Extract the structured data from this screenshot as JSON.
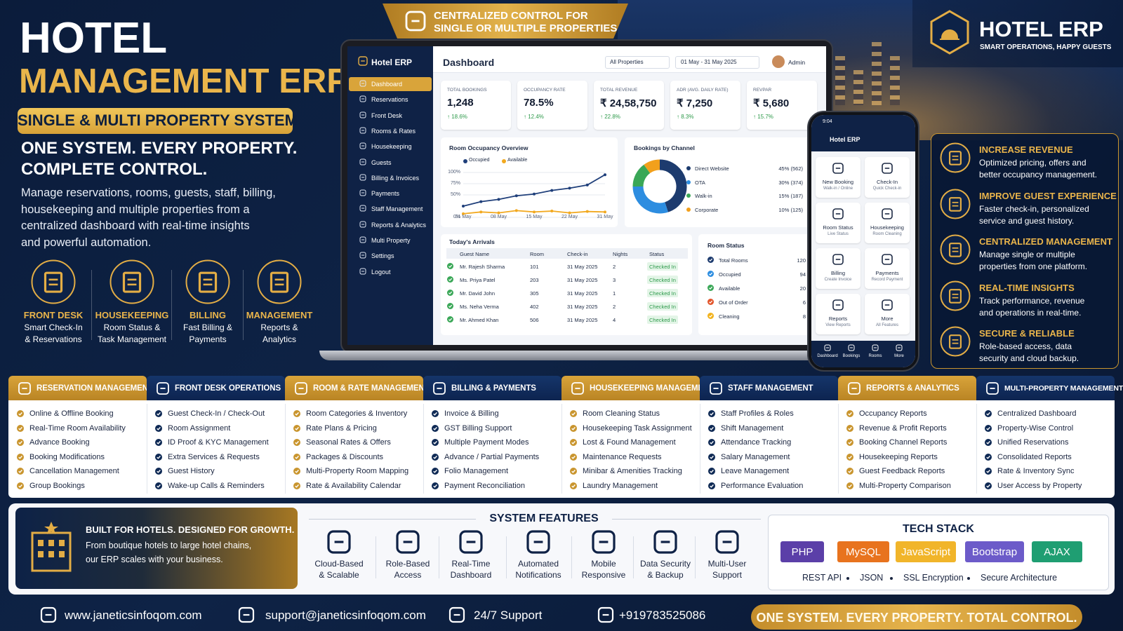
{
  "hero": {
    "title_line1": "HOTEL",
    "title_line2": "MANAGEMENT ERP",
    "badge": "SINGLE & MULTI PROPERTY SYSTEM",
    "tagline_lines": [
      "ONE SYSTEM. EVERY PROPERTY.",
      "COMPLETE CONTROL."
    ],
    "description_lines": [
      "Manage reservations, rooms, guests, staff, billing,",
      "housekeeping and multiple properties from a",
      "centralized dashboard with real-time insights",
      "and powerful automation."
    ],
    "modules": [
      {
        "title": "FRONT DESK",
        "lines": [
          "Smart Check-In",
          "& Reservations"
        ]
      },
      {
        "title": "HOUSEKEEPING",
        "lines": [
          "Room Status &",
          "Task Management"
        ]
      },
      {
        "title": "BILLING",
        "lines": [
          "Fast Billing &",
          "Payments"
        ]
      },
      {
        "title": "MANAGEMENT",
        "lines": [
          "Reports &",
          "Analytics"
        ]
      }
    ]
  },
  "top_banner": {
    "lines": [
      "CENTRALIZED CONTROL FOR",
      "SINGLE OR MULTIPLE PROPERTIES"
    ]
  },
  "brand": {
    "name": "HOTEL ERP",
    "tagline": "SMART OPERATIONS, HAPPY GUESTS"
  },
  "dashboard": {
    "app_name": "Hotel ERP",
    "menu": [
      "Dashboard",
      "Reservations",
      "Front Desk",
      "Rooms & Rates",
      "Housekeeping",
      "Guests",
      "Billing & Invoices",
      "Payments",
      "Staff Management",
      "Reports & Analytics",
      "Multi Property",
      "Settings",
      "Logout"
    ],
    "title": "Dashboard",
    "property_filter": "All Properties",
    "date_filter": "01 May - 31 May 2025",
    "user": "Admin",
    "kpis": [
      {
        "label": "TOTAL BOOKINGS",
        "value": "1,248",
        "change": "↑ 18.6%"
      },
      {
        "label": "OCCUPANCY RATE",
        "value": "78.5%",
        "change": "↑ 12.4%"
      },
      {
        "label": "TOTAL REVENUE",
        "value": "₹ 24,58,750",
        "change": "↑ 22.8%"
      },
      {
        "label": "ADR (AVG. DAILY RATE)",
        "value": "₹ 7,250",
        "change": "↑ 8.3%"
      },
      {
        "label": "REVPAR",
        "value": "₹ 5,680",
        "change": "↑ 15.7%"
      }
    ],
    "occupancy": {
      "title": "Room Occupancy Overview",
      "ylim": [
        0,
        100
      ],
      "yticks": [
        {
          "value": 100,
          "label": "100%"
        },
        {
          "value": 75,
          "label": "75%"
        },
        {
          "value": 50,
          "label": "50%"
        },
        {
          "value": 0,
          "label": "0%"
        }
      ],
      "x_labels": [
        "01 May",
        "08 May",
        "15 May",
        "22 May",
        "31 May"
      ],
      "series": [
        {
          "name": "Occupied",
          "color": "#1f3f7a",
          "values": [
            25,
            35,
            40,
            48,
            52,
            60,
            65,
            72,
            95
          ]
        },
        {
          "name": "Available",
          "color": "#f2a91f",
          "values": [
            8,
            12,
            10,
            15,
            12,
            14,
            10,
            13,
            12
          ]
        }
      ]
    },
    "channels": {
      "title": "Bookings by Channel",
      "items": [
        {
          "name": "Direct Website",
          "value": 45,
          "label": "45% (562)",
          "color": "#1d3b6e"
        },
        {
          "name": "OTA",
          "value": 30,
          "label": "30% (374)",
          "color": "#2d8de0"
        },
        {
          "name": "Walk-in",
          "value": 15,
          "label": "15% (187)",
          "color": "#3aa757"
        },
        {
          "name": "Corporate",
          "value": 10,
          "label": "10% (125)",
          "color": "#f2a01c"
        }
      ]
    },
    "arrivals": {
      "title": "Today's Arrivals",
      "columns": [
        "Guest Name",
        "Room",
        "Check-in",
        "Nights",
        "Status"
      ],
      "rows": [
        [
          "Mr. Rajesh Sharma",
          "101",
          "31 May 2025",
          "2",
          "Checked In"
        ],
        [
          "Ms. Priya Patel",
          "203",
          "31 May 2025",
          "3",
          "Checked In"
        ],
        [
          "Mr. David John",
          "305",
          "31 May 2025",
          "1",
          "Checked In"
        ],
        [
          "Ms. Neha Verma",
          "402",
          "31 May 2025",
          "2",
          "Checked In"
        ],
        [
          "Mr. Ahmed Khan",
          "506",
          "31 May 2025",
          "4",
          "Checked In"
        ]
      ]
    },
    "room_status": {
      "title": "Room Status",
      "rows": [
        {
          "label": "Total Rooms",
          "value": "120",
          "color": "#1d3b6e"
        },
        {
          "label": "Occupied",
          "value": "94",
          "color": "#2d8de0"
        },
        {
          "label": "Available",
          "value": "20",
          "color": "#3aa757"
        },
        {
          "label": "Out of Order",
          "value": "6",
          "color": "#e2552b"
        },
        {
          "label": "Cleaning",
          "value": "8",
          "color": "#f2b21c"
        }
      ]
    }
  },
  "phone": {
    "time": "9:04",
    "title": "Hotel ERP",
    "tiles": [
      {
        "title": "New Booking",
        "sub": "Walk-in / Online"
      },
      {
        "title": "Check-In",
        "sub": "Quick Check-in"
      },
      {
        "title": "Room Status",
        "sub": "Live Status"
      },
      {
        "title": "Housekeeping",
        "sub": "Room Cleaning"
      },
      {
        "title": "Billing",
        "sub": "Create Invoice"
      },
      {
        "title": "Payments",
        "sub": "Record Payment"
      },
      {
        "title": "Reports",
        "sub": "View Reports"
      },
      {
        "title": "More",
        "sub": "All Features"
      }
    ],
    "nav": [
      "Dashboard",
      "Bookings",
      "Rooms",
      "More"
    ]
  },
  "benefits": [
    {
      "title": "INCREASE REVENUE",
      "lines": [
        "Optimized pricing, offers and",
        "better occupancy management."
      ]
    },
    {
      "title": "IMPROVE GUEST EXPERIENCE",
      "lines": [
        "Faster check-in, personalized",
        "service and guest history."
      ]
    },
    {
      "title": "CENTRALIZED MANAGEMENT",
      "lines": [
        "Manage single or multiple",
        "properties from one platform."
      ]
    },
    {
      "title": "REAL-TIME INSIGHTS",
      "lines": [
        "Track performance, revenue",
        "and operations in real-time."
      ]
    },
    {
      "title": "SECURE & RELIABLE",
      "lines": [
        "Role-based access, data",
        "security and cloud backup."
      ]
    }
  ],
  "feature_columns": [
    {
      "title": "RESERVATION MANAGEMENT",
      "items": [
        "Online & Offline Booking",
        "Real-Time Room Availability",
        "Advance Booking",
        "Booking Modifications",
        "Cancellation Management",
        "Group Bookings"
      ]
    },
    {
      "title": "FRONT DESK OPERATIONS",
      "items": [
        "Guest Check-In / Check-Out",
        "Room Assignment",
        "ID Proof & KYC Management",
        "Extra Services & Requests",
        "Guest History",
        "Wake-up Calls & Reminders"
      ]
    },
    {
      "title": "ROOM & RATE MANAGEMENT",
      "items": [
        "Room Categories & Inventory",
        "Rate Plans & Pricing",
        "Seasonal Rates & Offers",
        "Packages & Discounts",
        "Multi-Property Room Mapping",
        "Rate & Availability Calendar"
      ]
    },
    {
      "title": "BILLING & PAYMENTS",
      "items": [
        "Invoice & Billing",
        "GST Billing Support",
        "Multiple Payment Modes",
        "Advance / Partial Payments",
        "Folio Management",
        "Payment Reconciliation"
      ]
    },
    {
      "title": "HOUSEKEEPING MANAGEMENT",
      "items": [
        "Room Cleaning Status",
        "Housekeeping Task Assignment",
        "Lost & Found Management",
        "Maintenance Requests",
        "Minibar & Amenities Tracking",
        "Laundry Management"
      ]
    },
    {
      "title": "STAFF MANAGEMENT",
      "items": [
        "Staff Profiles & Roles",
        "Shift Management",
        "Attendance Tracking",
        "Salary Management",
        "Leave Management",
        "Performance Evaluation"
      ]
    },
    {
      "title": "REPORTS & ANALYTICS",
      "items": [
        "Occupancy Reports",
        "Revenue & Profit Reports",
        "Booking Channel Reports",
        "Housekeeping Reports",
        "Guest Feedback Reports",
        "Multi-Property Comparison"
      ]
    },
    {
      "title": "MULTI-PROPERTY MANAGEMENT",
      "items": [
        "Centralized Dashboard",
        "Property-Wise Control",
        "Unified Reservations",
        "Consolidated Reports",
        "Rate & Inventory Sync",
        "User Access by Property"
      ]
    }
  ],
  "built_for": {
    "title": "BUILT FOR HOTELS. DESIGNED FOR GROWTH.",
    "lines": [
      "From boutique hotels to large hotel chains,",
      "our ERP scales with your business."
    ]
  },
  "system_features": {
    "title": "SYSTEM FEATURES",
    "items": [
      [
        "Cloud-Based",
        "& Scalable"
      ],
      [
        "Role-Based",
        "Access"
      ],
      [
        "Real-Time",
        "Dashboard"
      ],
      [
        "Automated",
        "Notifications"
      ],
      [
        "Mobile",
        "Responsive"
      ],
      [
        "Data Security",
        "& Backup"
      ],
      [
        "Multi-User",
        "Support"
      ]
    ]
  },
  "tech_stack": {
    "title": "TECH STACK",
    "badges": [
      {
        "name": "PHP",
        "color": "#5b3fa8"
      },
      {
        "name": "MySQL",
        "color": "#e8731e"
      },
      {
        "name": "JavaScript",
        "color": "#f1b52a"
      },
      {
        "name": "Bootstrap",
        "color": "#6c5bc9"
      },
      {
        "name": "AJAX",
        "color": "#1f9e72"
      }
    ],
    "extras": [
      "REST API",
      "JSON",
      "SSL Encryption",
      "Secure Architecture"
    ]
  },
  "footer": {
    "website": "www.janeticsinfoqom.com",
    "email": "support@janeticsinfoqom.com",
    "support": "24/7 Support",
    "phone": "+919783525086",
    "slogan": "ONE SYSTEM. EVERY PROPERTY. TOTAL CONTROL."
  }
}
